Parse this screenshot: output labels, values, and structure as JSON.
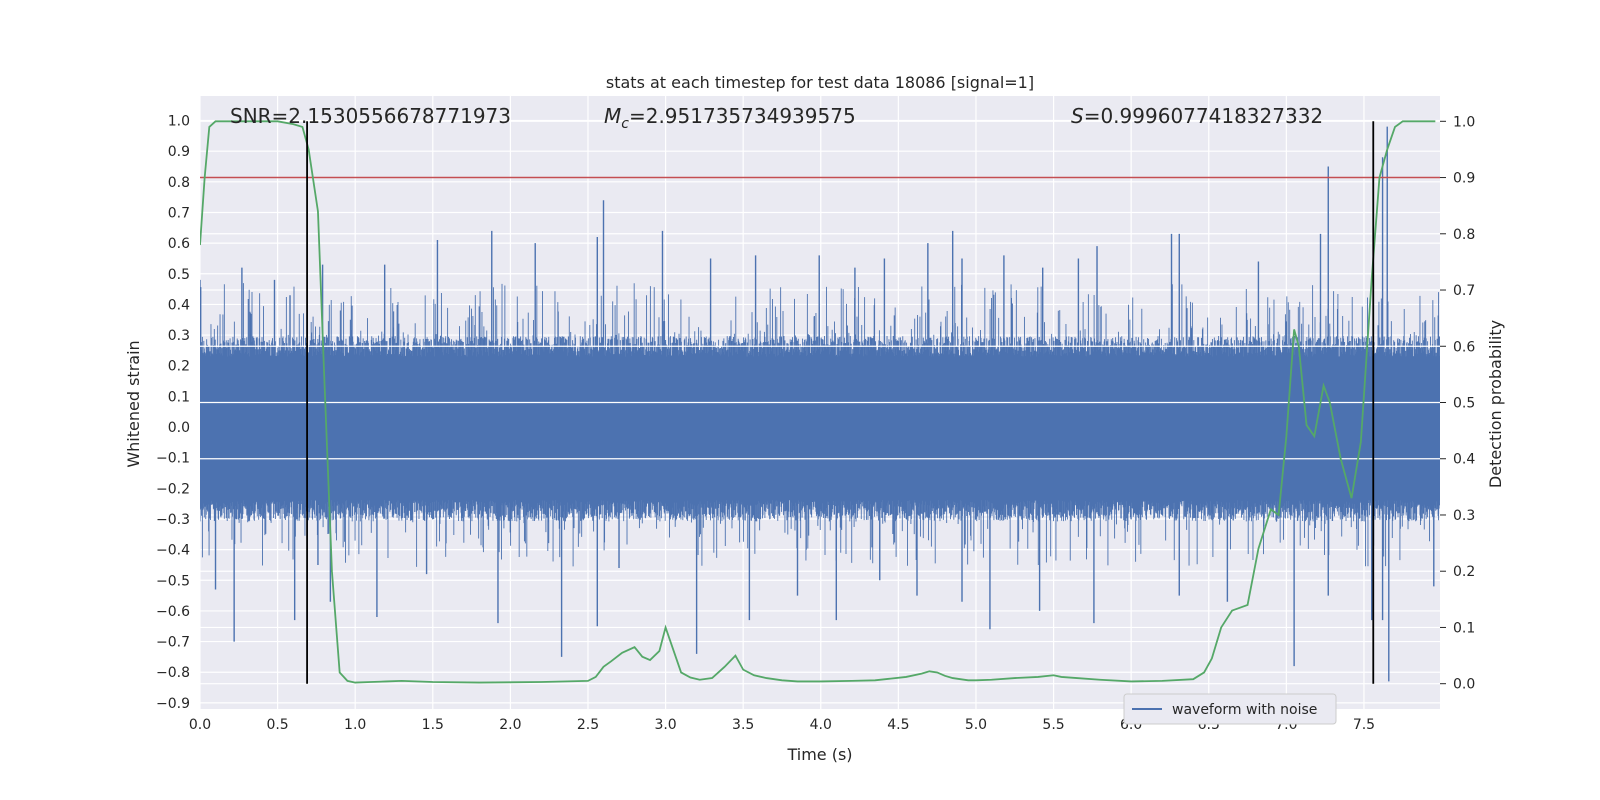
{
  "chart_data": {
    "type": "line",
    "title": "stats at each timestep for test data 18086 [signal=1]",
    "xlabel": "Time (s)",
    "ylabel": "Whitened strain",
    "ylabel_right": "Detection probability",
    "xlim": [
      0.0,
      7.99
    ],
    "ylim": [
      -0.92,
      1.08
    ],
    "ylim_right": [
      -0.045,
      1.045
    ],
    "x_ticks": [
      "0.0",
      "0.5",
      "1.0",
      "1.5",
      "2.0",
      "2.5",
      "3.0",
      "3.5",
      "4.0",
      "4.5",
      "5.0",
      "5.5",
      "6.0",
      "6.5",
      "7.0",
      "7.5"
    ],
    "y_ticks": [
      "1.0",
      "0.9",
      "0.8",
      "0.7",
      "0.6",
      "0.5",
      "0.4",
      "0.3",
      "0.2",
      "0.1",
      "0.0",
      "−0.1",
      "−0.2",
      "−0.3",
      "−0.4",
      "−0.5",
      "−0.6",
      "−0.7",
      "−0.8",
      "−0.9"
    ],
    "y_right_ticks": [
      "1.0",
      "0.9",
      "0.8",
      "0.7",
      "0.6",
      "0.5",
      "0.4",
      "0.3",
      "0.2",
      "0.1",
      "0.0"
    ],
    "grid": true,
    "legend": {
      "position": "lower-right",
      "entries": [
        "waveform with noise"
      ]
    },
    "annotations": {
      "snr_label": "SNR=2.1530556678771973",
      "mc_symbol": "M",
      "mc_subscript": "c",
      "mc_value": "=2.951735734939575",
      "s_symbol": "S",
      "s_value": "=0.9996077418327332"
    },
    "threshold_right": 0.9,
    "event_lines_x": [
      0.69,
      7.56
    ],
    "series": [
      {
        "name": "waveform with noise",
        "axis": "left",
        "color": "#4c72b0",
        "kind": "noise",
        "band_min": -0.28,
        "band_max": 0.27,
        "peaks_positive": [
          [
            0.0,
            0.48
          ],
          [
            0.27,
            0.52
          ],
          [
            0.48,
            0.48
          ],
          [
            0.58,
            0.43
          ],
          [
            0.79,
            0.53
          ],
          [
            1.19,
            0.53
          ],
          [
            1.53,
            0.61
          ],
          [
            1.88,
            0.64
          ],
          [
            2.16,
            0.6
          ],
          [
            2.56,
            0.62
          ],
          [
            2.6,
            0.74
          ],
          [
            2.98,
            0.64
          ],
          [
            3.29,
            0.55
          ],
          [
            3.58,
            0.56
          ],
          [
            3.99,
            0.56
          ],
          [
            4.22,
            0.52
          ],
          [
            4.41,
            0.55
          ],
          [
            4.69,
            0.6
          ],
          [
            4.85,
            0.64
          ],
          [
            4.91,
            0.55
          ],
          [
            5.18,
            0.56
          ],
          [
            5.43,
            0.52
          ],
          [
            5.66,
            0.55
          ],
          [
            5.78,
            0.59
          ],
          [
            6.26,
            0.63
          ],
          [
            6.31,
            0.63
          ],
          [
            6.82,
            0.54
          ],
          [
            7.22,
            0.63
          ],
          [
            7.27,
            0.85
          ],
          [
            7.62,
            0.88
          ],
          [
            7.65,
            0.98
          ]
        ],
        "peaks_negative": [
          [
            0.1,
            -0.53
          ],
          [
            0.22,
            -0.7
          ],
          [
            0.61,
            -0.63
          ],
          [
            0.76,
            -0.45
          ],
          [
            0.84,
            -0.57
          ],
          [
            1.14,
            -0.62
          ],
          [
            1.46,
            -0.48
          ],
          [
            1.92,
            -0.64
          ],
          [
            2.33,
            -0.75
          ],
          [
            2.56,
            -0.65
          ],
          [
            2.7,
            -0.46
          ],
          [
            3.2,
            -0.74
          ],
          [
            3.54,
            -0.63
          ],
          [
            3.85,
            -0.55
          ],
          [
            4.1,
            -0.63
          ],
          [
            4.38,
            -0.5
          ],
          [
            4.62,
            -0.55
          ],
          [
            4.91,
            -0.57
          ],
          [
            5.09,
            -0.66
          ],
          [
            5.41,
            -0.6
          ],
          [
            5.76,
            -0.64
          ],
          [
            6.31,
            -0.55
          ],
          [
            6.62,
            -0.57
          ],
          [
            7.05,
            -0.78
          ],
          [
            7.27,
            -0.55
          ],
          [
            7.55,
            -0.63
          ],
          [
            7.62,
            -0.63
          ],
          [
            7.66,
            -0.83
          ],
          [
            7.95,
            -0.52
          ]
        ]
      },
      {
        "name": "",
        "axis": "right",
        "color": "#55a868",
        "x": [
          0.0,
          0.03,
          0.06,
          0.1,
          0.15,
          0.3,
          0.5,
          0.6,
          0.66,
          0.7,
          0.76,
          0.8,
          0.85,
          0.9,
          0.95,
          1.0,
          1.1,
          1.2,
          1.3,
          1.5,
          1.8,
          2.2,
          2.5,
          2.55,
          2.6,
          2.65,
          2.72,
          2.8,
          2.85,
          2.9,
          2.96,
          3.0,
          3.05,
          3.1,
          3.16,
          3.22,
          3.3,
          3.38,
          3.45,
          3.5,
          3.57,
          3.65,
          3.75,
          3.85,
          4.0,
          4.2,
          4.35,
          4.45,
          4.55,
          4.65,
          4.7,
          4.75,
          4.8,
          4.85,
          4.95,
          5.0,
          5.1,
          5.25,
          5.4,
          5.5,
          5.55,
          5.65,
          5.8,
          6.0,
          6.2,
          6.4,
          6.47,
          6.52,
          6.58,
          6.65,
          6.75,
          6.82,
          6.9,
          6.95,
          7.0,
          7.05,
          7.08,
          7.13,
          7.18,
          7.24,
          7.28,
          7.35,
          7.42,
          7.48,
          7.55,
          7.6,
          7.65,
          7.7,
          7.75,
          7.8,
          7.9,
          7.96
        ],
        "y": [
          0.78,
          0.9,
          0.99,
          1.0,
          1.0,
          1.0,
          1.0,
          0.995,
          0.99,
          0.95,
          0.84,
          0.55,
          0.2,
          0.02,
          0.005,
          0.002,
          0.003,
          0.004,
          0.005,
          0.003,
          0.002,
          0.003,
          0.005,
          0.012,
          0.03,
          0.04,
          0.055,
          0.065,
          0.048,
          0.042,
          0.058,
          0.1,
          0.06,
          0.02,
          0.011,
          0.007,
          0.01,
          0.03,
          0.05,
          0.025,
          0.015,
          0.01,
          0.006,
          0.004,
          0.004,
          0.005,
          0.006,
          0.009,
          0.012,
          0.018,
          0.022,
          0.02,
          0.014,
          0.01,
          0.006,
          0.006,
          0.007,
          0.01,
          0.012,
          0.015,
          0.012,
          0.01,
          0.007,
          0.004,
          0.005,
          0.008,
          0.02,
          0.045,
          0.1,
          0.13,
          0.14,
          0.24,
          0.31,
          0.3,
          0.44,
          0.63,
          0.6,
          0.46,
          0.44,
          0.53,
          0.5,
          0.4,
          0.33,
          0.43,
          0.72,
          0.9,
          0.95,
          0.99,
          1.0,
          1.0,
          1.0,
          1.0
        ]
      }
    ]
  }
}
